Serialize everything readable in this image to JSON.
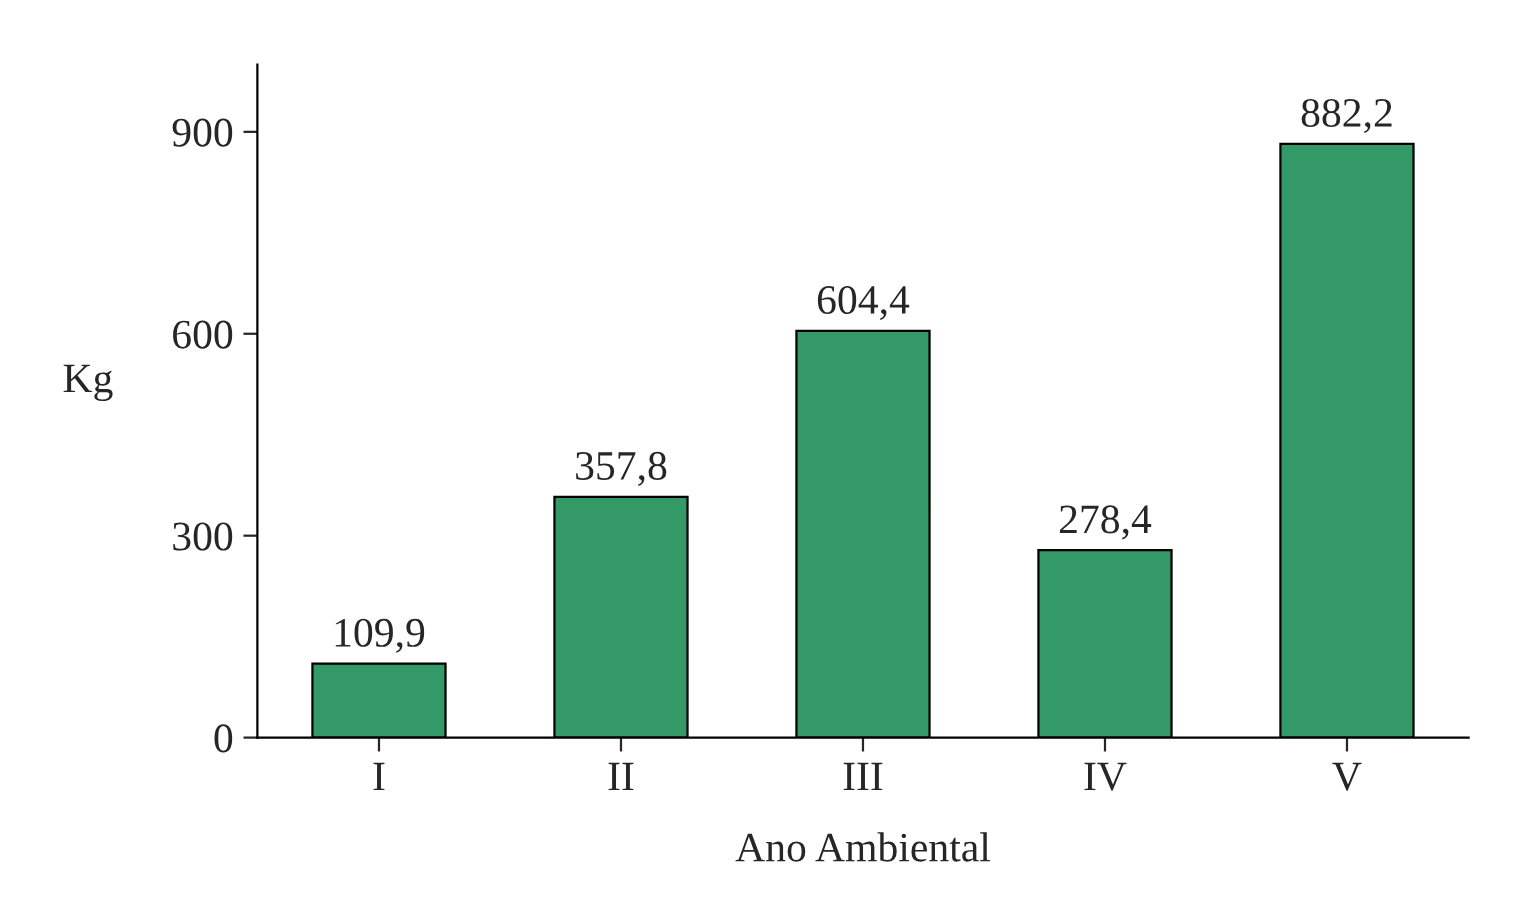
{
  "chart_data": {
    "type": "bar",
    "xlabel": "Ano Ambiental",
    "ylabel": "Kg",
    "categories": [
      "I",
      "II",
      "III",
      "IV",
      "V"
    ],
    "values": [
      109.9,
      357.8,
      604.4,
      278.4,
      882.2
    ],
    "value_labels": [
      "109,9",
      "357,8",
      "604,4",
      "278,4",
      "882,2"
    ],
    "color": "#339966",
    "ylim": [
      0,
      1000
    ],
    "yticks": [
      0,
      300,
      600,
      900
    ],
    "grid": false
  }
}
